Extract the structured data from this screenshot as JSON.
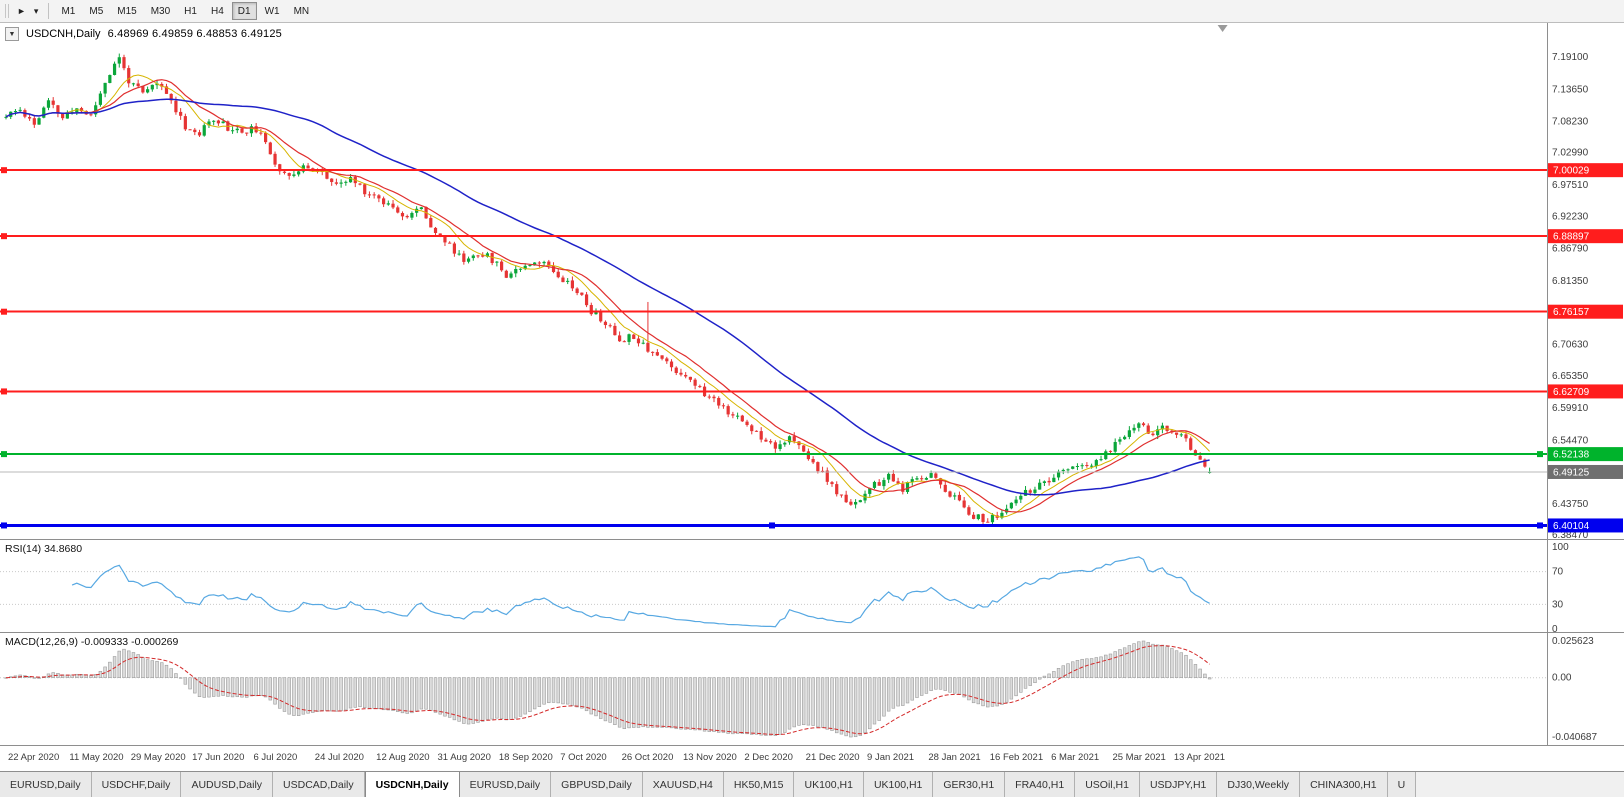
{
  "toolbar": {
    "timeframes": [
      "M1",
      "M5",
      "M15",
      "M30",
      "H1",
      "H4",
      "D1",
      "W1",
      "MN"
    ],
    "active_timeframe": "D1"
  },
  "chart": {
    "title": "USDCNH,Daily",
    "ohlc_text": "6.48969 6.49859 6.48853 6.49125",
    "collapse_glyph": "▼"
  },
  "chart_data": {
    "type": "candlestick",
    "symbol": "USDCNH",
    "timeframe": "Daily",
    "last_candle": [
      6.48969,
      6.49859,
      6.48853,
      6.49125
    ],
    "candles_count": 256,
    "seed": 11,
    "price_keyframes": [
      [
        0,
        7.09
      ],
      [
        3,
        7.103
      ],
      [
        6,
        7.078
      ],
      [
        9,
        7.115
      ],
      [
        12,
        7.088
      ],
      [
        15,
        7.105
      ],
      [
        18,
        7.092
      ],
      [
        21,
        7.15
      ],
      [
        24,
        7.19
      ],
      [
        26,
        7.152
      ],
      [
        29,
        7.128
      ],
      [
        32,
        7.148
      ],
      [
        35,
        7.118
      ],
      [
        38,
        7.075
      ],
      [
        41,
        7.06
      ],
      [
        44,
        7.09
      ],
      [
        47,
        7.072
      ],
      [
        50,
        7.065
      ],
      [
        53,
        7.07
      ],
      [
        56,
        7.028
      ],
      [
        58,
        7.002
      ],
      [
        61,
        6.992
      ],
      [
        64,
        7.008
      ],
      [
        67,
        6.996
      ],
      [
        70,
        6.972
      ],
      [
        73,
        6.986
      ],
      [
        76,
        6.966
      ],
      [
        79,
        6.952
      ],
      [
        82,
        6.94
      ],
      [
        85,
        6.922
      ],
      [
        88,
        6.936
      ],
      [
        91,
        6.896
      ],
      [
        94,
        6.872
      ],
      [
        97,
        6.848
      ],
      [
        100,
        6.862
      ],
      [
        103,
        6.85
      ],
      [
        106,
        6.824
      ],
      [
        109,
        6.838
      ],
      [
        112,
        6.848
      ],
      [
        115,
        6.84
      ],
      [
        118,
        6.818
      ],
      [
        121,
        6.798
      ],
      [
        124,
        6.762
      ],
      [
        127,
        6.742
      ],
      [
        130,
        6.714
      ],
      [
        133,
        6.722
      ],
      [
        136,
        6.7
      ],
      [
        139,
        6.682
      ],
      [
        142,
        6.662
      ],
      [
        145,
        6.65
      ],
      [
        148,
        6.622
      ],
      [
        151,
        6.608
      ],
      [
        154,
        6.588
      ],
      [
        157,
        6.57
      ],
      [
        160,
        6.552
      ],
      [
        163,
        6.536
      ],
      [
        166,
        6.548
      ],
      [
        169,
        6.524
      ],
      [
        172,
        6.498
      ],
      [
        175,
        6.466
      ],
      [
        178,
        6.438
      ],
      [
        181,
        6.446
      ],
      [
        184,
        6.468
      ],
      [
        187,
        6.482
      ],
      [
        190,
        6.462
      ],
      [
        193,
        6.48
      ],
      [
        196,
        6.488
      ],
      [
        199,
        6.462
      ],
      [
        202,
        6.44
      ],
      [
        205,
        6.418
      ],
      [
        208,
        6.408
      ],
      [
        211,
        6.422
      ],
      [
        214,
        6.442
      ],
      [
        217,
        6.462
      ],
      [
        220,
        6.47
      ],
      [
        223,
        6.486
      ],
      [
        226,
        6.504
      ],
      [
        229,
        6.496
      ],
      [
        232,
        6.514
      ],
      [
        235,
        6.538
      ],
      [
        238,
        6.562
      ],
      [
        240,
        6.576
      ],
      [
        242,
        6.556
      ],
      [
        245,
        6.564
      ],
      [
        248,
        6.554
      ],
      [
        250,
        6.544
      ],
      [
        252,
        6.524
      ],
      [
        254,
        6.503
      ],
      [
        255,
        6.491
      ]
    ],
    "spikes": [
      [
        136,
        6.778
      ]
    ],
    "price_axis": {
      "top_price": 7.2485,
      "bottom_price": 6.3782,
      "labels": [
        "7.19100",
        "7.13650",
        "7.08230",
        "7.02990",
        "6.97510",
        "6.92230",
        "6.86790",
        "6.81350",
        "6.70630",
        "6.65350",
        "6.59910",
        "6.54470",
        "6.43750",
        "6.38470"
      ]
    },
    "hlines": [
      {
        "label": "7.00029",
        "value": 7.00029,
        "color": "#ff1d1d",
        "width": 2,
        "handles": [
          4
        ]
      },
      {
        "label": "6.88897",
        "value": 6.88897,
        "color": "#ff1d1d",
        "width": 2,
        "handles": [
          4
        ]
      },
      {
        "label": "6.76157",
        "value": 6.76157,
        "color": "#ff1d1d",
        "width": 2,
        "handles": [
          4
        ]
      },
      {
        "label": "6.62709",
        "value": 6.62709,
        "color": "#ff1d1d",
        "width": 2,
        "handles": [
          4
        ]
      },
      {
        "label": "6.52138",
        "value": 6.52138,
        "color": "#00b32c",
        "width": 2,
        "handles": [
          4,
          1540
        ]
      },
      {
        "label": "6.40104",
        "value": 6.40104,
        "color": "#0000ee",
        "width": 3,
        "handles": [
          4,
          772,
          1540
        ]
      }
    ],
    "current_price": {
      "label": "6.49125",
      "value": 6.49125,
      "line_color": "#b8b8b8",
      "badge_color": "#6f6f6f"
    },
    "moving_averages": [
      {
        "period": 8,
        "color": "#d7b500",
        "width": 1
      },
      {
        "period": 13,
        "color": "#e02f2f",
        "width": 1.2
      },
      {
        "period": 45,
        "color": "#1f22c8",
        "width": 1.5
      }
    ],
    "candle_colors": {
      "up": "#0ba63a",
      "down": "#e63434"
    },
    "rsi": {
      "label": "RSI(14)",
      "value": "34.8680",
      "period": 14,
      "color": "#57a8e2",
      "axis_labels": [
        "100",
        "70",
        "30",
        "0"
      ],
      "level_lines": [
        70,
        30
      ]
    },
    "macd": {
      "label": "MACD(12,26,9)",
      "values_text": "-0.009333 -0.000269",
      "fast": 12,
      "slow": 26,
      "signal": 9,
      "axis_labels": {
        "top": "0.025623",
        "zero": "0.00",
        "bottom": "-0.040687"
      },
      "hist_fill": "#dcdcdc",
      "hist_stroke": "#9c9c9c",
      "signal_color": "#d42a2a"
    },
    "x_ticks": {
      "step": 13,
      "labels": [
        "22 Apr 2020",
        "11 May 2020",
        "29 May 2020",
        "17 Jun 2020",
        "6 Jul 2020",
        "24 Jul 2020",
        "12 Aug 2020",
        "31 Aug 2020",
        "18 Sep 2020",
        "7 Oct 2020",
        "26 Oct 2020",
        "13 Nov 2020",
        "2 Dec 2020",
        "21 Dec 2020",
        "9 Jan 2021",
        "28 Jan 2021",
        "16 Feb 2021",
        "6 Mar 2021",
        "25 Mar 2021",
        "13 Apr 2021"
      ]
    }
  },
  "tabs": {
    "items": [
      "EURUSD,Daily",
      "USDCHF,Daily",
      "AUDUSD,Daily",
      "USDCAD,Daily",
      "USDCNH,Daily",
      "EURUSD,Daily",
      "GBPUSD,Daily",
      "XAUUSD,H4",
      "HK50,M15",
      "UK100,H1",
      "UK100,H1",
      "GER30,H1",
      "FRA40,H1",
      "USOil,H1",
      "USDJPY,H1",
      "DJ30,Weekly",
      "CHINA300,H1",
      "U"
    ],
    "active_index": 4
  }
}
